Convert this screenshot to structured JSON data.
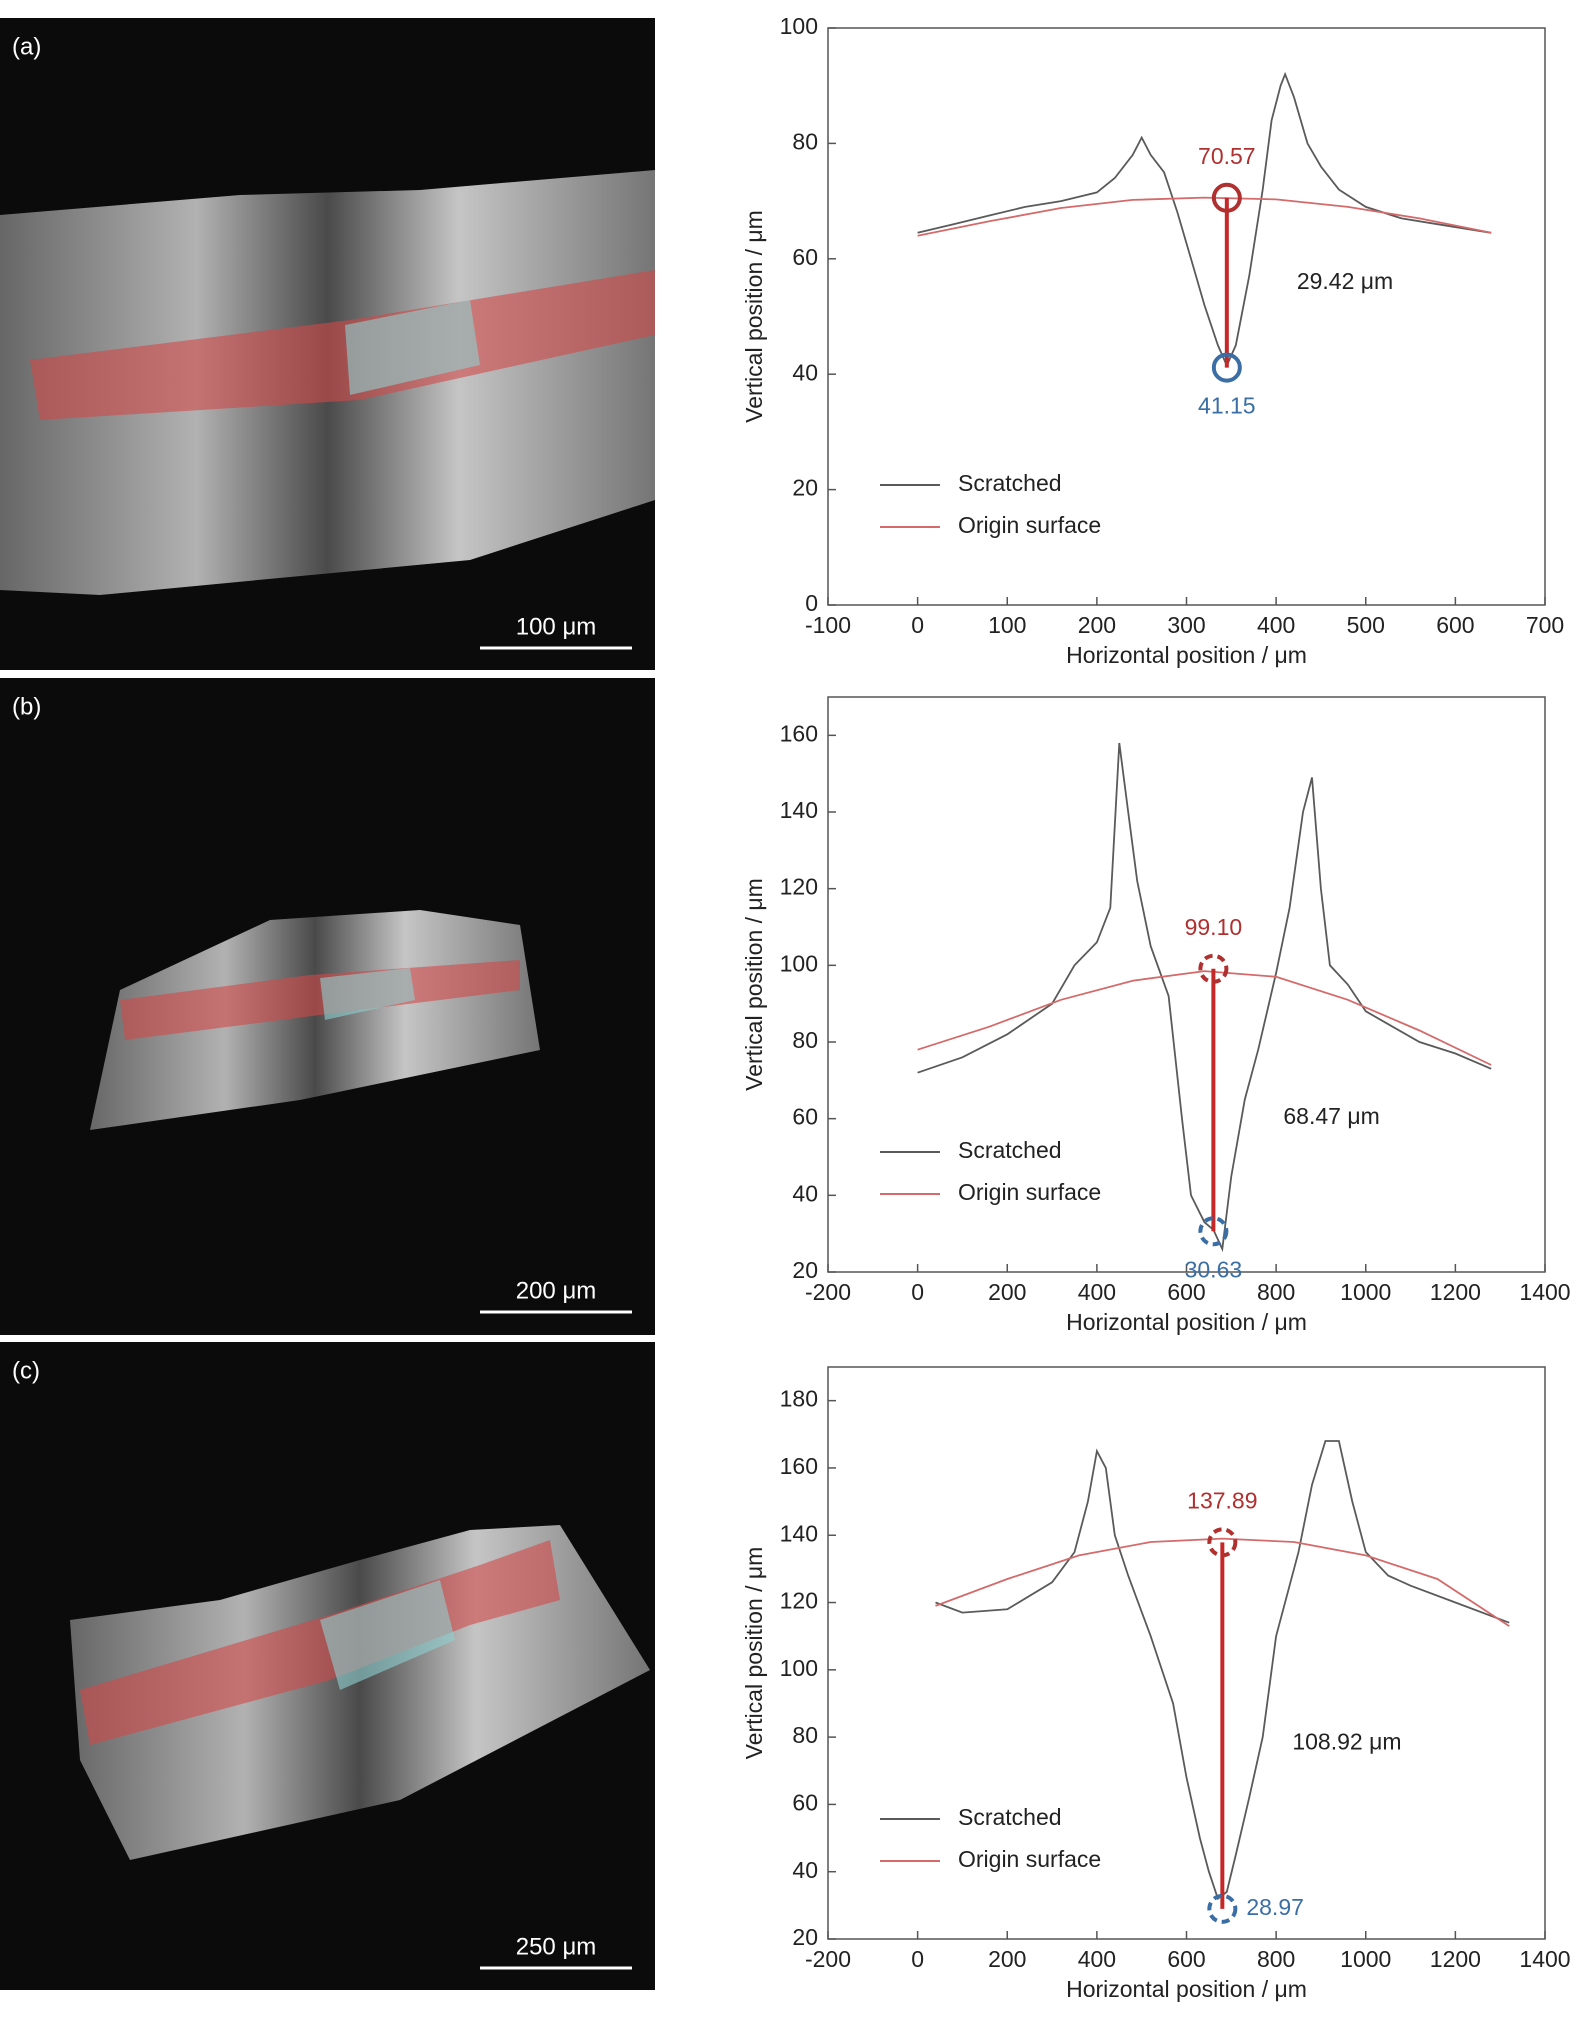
{
  "images": [
    {
      "label": "(a)",
      "scale_bar": "100 μm"
    },
    {
      "label": "(b)",
      "scale_bar": "200 μm"
    },
    {
      "label": "(c)",
      "scale_bar": "250 μm"
    }
  ],
  "chart_data": [
    {
      "type": "line",
      "xlabel": "Horizontal position / μm",
      "ylabel": "Vertical position / μm",
      "xlim": [
        -100,
        700
      ],
      "xticks": [
        -100,
        0,
        100,
        200,
        300,
        400,
        500,
        600,
        700
      ],
      "ylim": [
        0,
        100
      ],
      "yticks": [
        0,
        20,
        40,
        60,
        80,
        100
      ],
      "legend": "lower left",
      "series": [
        {
          "name": "Scratched",
          "color": "#5a5a5a",
          "x": [
            0,
            40,
            80,
            120,
            160,
            200,
            220,
            240,
            250,
            260,
            275,
            290,
            305,
            320,
            335,
            345,
            355,
            370,
            385,
            395,
            405,
            410,
            420,
            435,
            450,
            470,
            500,
            540,
            580,
            640
          ],
          "values": [
            64.5,
            66,
            67.5,
            69,
            70,
            71.5,
            74,
            78,
            81,
            78,
            75,
            68,
            60,
            52,
            45,
            41.5,
            45,
            57,
            72,
            84,
            90,
            92,
            88,
            80,
            76,
            72,
            69,
            67,
            66,
            64.5
          ]
        },
        {
          "name": "Origin surface",
          "color": "#d46a6a",
          "x": [
            0,
            80,
            160,
            240,
            320,
            400,
            480,
            560,
            640
          ],
          "values": [
            64,
            66.5,
            68.8,
            70.2,
            70.6,
            70.3,
            69,
            67,
            64.5
          ]
        }
      ],
      "marker_style": "solid",
      "markers": [
        {
          "x": 345,
          "y": 70.57,
          "label": "70.57",
          "color": "#b03030"
        },
        {
          "x": 345,
          "y": 41.15,
          "label": "41.15",
          "color": "#3a6ea5"
        }
      ],
      "depth": {
        "value": 29.42,
        "label": "29.42 μm"
      }
    },
    {
      "type": "line",
      "xlabel": "Horizontal position / μm",
      "ylabel": "Vertical position / μm",
      "xlim": [
        -200,
        1400
      ],
      "xticks": [
        -200,
        0,
        200,
        400,
        600,
        800,
        1000,
        1200,
        1400
      ],
      "ylim": [
        20,
        170
      ],
      "yticks": [
        20,
        40,
        60,
        80,
        100,
        120,
        140,
        160
      ],
      "legend": "lower left",
      "series": [
        {
          "name": "Scratched",
          "color": "#5a5a5a",
          "x": [
            0,
            100,
            200,
            300,
            350,
            400,
            430,
            450,
            470,
            490,
            520,
            560,
            590,
            610,
            640,
            660,
            680,
            700,
            730,
            760,
            800,
            830,
            860,
            880,
            900,
            920,
            960,
            1000,
            1060,
            1120,
            1200,
            1280
          ],
          "values": [
            72,
            76,
            82,
            90,
            100,
            106,
            115,
            158,
            140,
            122,
            105,
            92,
            60,
            40,
            33,
            31,
            26,
            45,
            65,
            78,
            98,
            115,
            140,
            149,
            120,
            100,
            95,
            88,
            84,
            80,
            77,
            73
          ]
        },
        {
          "name": "Origin surface",
          "color": "#d46a6a",
          "x": [
            0,
            160,
            320,
            480,
            640,
            800,
            960,
            1120,
            1280
          ],
          "values": [
            78,
            84,
            91,
            96,
            98.5,
            97,
            91,
            83,
            74
          ]
        }
      ],
      "marker_style": "dashed",
      "markers": [
        {
          "x": 660,
          "y": 99.1,
          "label": "99.10",
          "color": "#b03030"
        },
        {
          "x": 660,
          "y": 30.63,
          "label": "30.63",
          "color": "#3a6ea5"
        }
      ],
      "depth": {
        "value": 68.47,
        "label": "68.47 μm"
      }
    },
    {
      "type": "line",
      "xlabel": "Horizontal position / μm",
      "ylabel": "Vertical position / μm",
      "xlim": [
        -200,
        1400
      ],
      "xticks": [
        -200,
        0,
        200,
        400,
        600,
        800,
        1000,
        1200,
        1400
      ],
      "ylim": [
        20,
        190
      ],
      "yticks": [
        20,
        40,
        60,
        80,
        100,
        120,
        140,
        160,
        180
      ],
      "legend": "lower left",
      "series": [
        {
          "name": "Scratched",
          "color": "#5a5a5a",
          "x": [
            40,
            100,
            200,
            300,
            350,
            380,
            400,
            420,
            440,
            470,
            520,
            570,
            600,
            630,
            650,
            670,
            690,
            710,
            740,
            770,
            800,
            850,
            880,
            910,
            940,
            970,
            1000,
            1050,
            1100,
            1200,
            1320
          ],
          "values": [
            120,
            117,
            118,
            126,
            135,
            150,
            165,
            160,
            140,
            128,
            110,
            90,
            68,
            50,
            40,
            32,
            34,
            45,
            62,
            80,
            110,
            135,
            155,
            168,
            168,
            150,
            135,
            128,
            125,
            120,
            114
          ]
        },
        {
          "name": "Origin surface",
          "color": "#d46a6a",
          "x": [
            40,
            200,
            360,
            520,
            680,
            840,
            1000,
            1160,
            1320
          ],
          "values": [
            119,
            127,
            134,
            138,
            139,
            138,
            134,
            127,
            113
          ]
        }
      ],
      "marker_style": "dashed",
      "markers": [
        {
          "x": 680,
          "y": 137.89,
          "label": "137.89",
          "color": "#b03030"
        },
        {
          "x": 680,
          "y": 28.97,
          "label": "28.97",
          "color": "#3a6ea5"
        }
      ],
      "depth": {
        "value": 108.92,
        "label": "108.92 μm"
      }
    }
  ]
}
